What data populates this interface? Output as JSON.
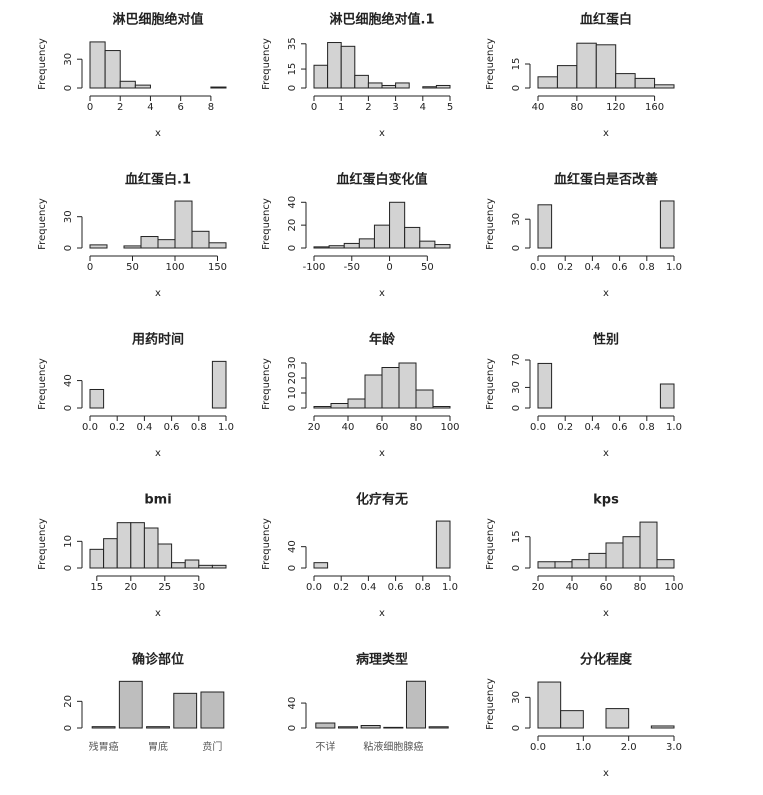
{
  "chart_data": [
    {
      "type": "histogram",
      "title": "淋巴细胞绝对值",
      "xlabel": "x",
      "ylabel": "Frequency",
      "color": "#d3d3d3",
      "bins": [
        0,
        1,
        2,
        3,
        4,
        5,
        6,
        7,
        8,
        9
      ],
      "values": [
        48,
        39,
        7,
        3,
        0,
        0,
        0,
        0,
        1
      ],
      "xlim": [
        0,
        9
      ],
      "xticks": [
        0,
        2,
        4,
        6,
        8
      ],
      "ylim": [
        0,
        50
      ],
      "yticks": [
        0,
        30
      ]
    },
    {
      "type": "histogram",
      "title": "淋巴细胞绝对值.1",
      "xlabel": "x",
      "ylabel": "Frequency",
      "color": "#d3d3d3",
      "bins": [
        0,
        0.5,
        1,
        1.5,
        2,
        2.5,
        3,
        3.5,
        4,
        4.5,
        5
      ],
      "values": [
        18,
        36,
        33,
        10,
        4,
        2,
        4,
        0,
        1,
        2
      ],
      "xlim": [
        0,
        5
      ],
      "xticks": [
        0,
        1,
        2,
        3,
        4,
        5
      ],
      "ylim": [
        0,
        38
      ],
      "yticks": [
        0,
        15,
        35
      ]
    },
    {
      "type": "histogram",
      "title": "血红蛋白",
      "xlabel": "x",
      "ylabel": "Frequency",
      "color": "#d3d3d3",
      "bins": [
        40,
        60,
        80,
        100,
        120,
        140,
        160,
        180
      ],
      "values": [
        7,
        14,
        28,
        27,
        9,
        6,
        2
      ],
      "xlim": [
        40,
        180
      ],
      "xticks": [
        40,
        80,
        120,
        160
      ],
      "ylim": [
        0,
        30
      ],
      "yticks": [
        0,
        15
      ]
    },
    {
      "type": "histogram",
      "title": "血红蛋白.1",
      "xlabel": "x",
      "ylabel": "Frequency",
      "color": "#d3d3d3",
      "bins": [
        0,
        20,
        40,
        60,
        80,
        100,
        120,
        140,
        160
      ],
      "values": [
        3,
        0,
        2,
        11,
        8,
        45,
        16,
        5
      ],
      "xlim": [
        0,
        160
      ],
      "xticks": [
        0,
        50,
        100,
        150
      ],
      "ylim": [
        0,
        46
      ],
      "yticks": [
        0,
        30
      ]
    },
    {
      "type": "histogram",
      "title": "血红蛋白变化值",
      "xlabel": "x",
      "ylabel": "Frequency",
      "color": "#d3d3d3",
      "bins": [
        -100,
        -80,
        -60,
        -40,
        -20,
        0,
        20,
        40,
        60,
        80
      ],
      "values": [
        1,
        2,
        4,
        8,
        20,
        40,
        18,
        6,
        3
      ],
      "xlim": [
        -100,
        80
      ],
      "xticks": [
        -100,
        -50,
        0,
        50
      ],
      "ylim": [
        0,
        42
      ],
      "yticks": [
        0,
        20,
        40
      ]
    },
    {
      "type": "histogram",
      "title": "血红蛋白是否改善",
      "xlabel": "x",
      "ylabel": "Frequency",
      "color": "#d3d3d3",
      "bins": [
        0,
        0.1,
        0.2,
        0.3,
        0.4,
        0.5,
        0.6,
        0.7,
        0.8,
        0.9,
        1
      ],
      "values": [
        45,
        0,
        0,
        0,
        0,
        0,
        0,
        0,
        0,
        49
      ],
      "xlim": [
        0,
        1
      ],
      "xticks": [
        {
          "value": 0,
          "label": "0.0"
        },
        0.2,
        0.4,
        0.6,
        0.8,
        {
          "value": 1,
          "label": "1.0"
        }
      ],
      "ylim": [
        0,
        50
      ],
      "yticks": [
        0,
        30
      ]
    },
    {
      "type": "histogram",
      "title": "用药时间",
      "xlabel": "x",
      "ylabel": "Frequency",
      "color": "#d3d3d3",
      "bins": [
        0,
        0.1,
        0.2,
        0.3,
        0.4,
        0.5,
        0.6,
        0.7,
        0.8,
        0.9,
        1
      ],
      "values": [
        27,
        0,
        0,
        0,
        0,
        0,
        0,
        0,
        0,
        68
      ],
      "xlim": [
        0,
        1
      ],
      "xticks": [
        {
          "value": 0,
          "label": "0.0"
        },
        0.2,
        0.4,
        0.6,
        0.8,
        {
          "value": 1,
          "label": "1.0"
        }
      ],
      "ylim": [
        0,
        70
      ],
      "yticks": [
        0,
        40
      ]
    },
    {
      "type": "histogram",
      "title": "年龄",
      "xlabel": "x",
      "ylabel": "Frequency",
      "color": "#d3d3d3",
      "bins": [
        20,
        30,
        40,
        50,
        60,
        70,
        80,
        90,
        100
      ],
      "values": [
        1,
        3,
        6,
        22,
        27,
        30,
        12,
        1
      ],
      "xlim": [
        20,
        100
      ],
      "xticks": [
        20,
        40,
        60,
        80,
        100
      ],
      "ylim": [
        0,
        32
      ],
      "yticks": [
        0,
        10,
        20,
        30
      ]
    },
    {
      "type": "histogram",
      "title": "性别",
      "xlabel": "x",
      "ylabel": "Frequency",
      "color": "#d3d3d3",
      "bins": [
        0,
        0.1,
        0.2,
        0.3,
        0.4,
        0.5,
        0.6,
        0.7,
        0.8,
        0.9,
        1
      ],
      "values": [
        65,
        0,
        0,
        0,
        0,
        0,
        0,
        0,
        0,
        35
      ],
      "xlim": [
        0,
        1
      ],
      "xticks": [
        {
          "value": 0,
          "label": "0.0"
        },
        0.2,
        0.4,
        0.6,
        0.8,
        {
          "value": 1,
          "label": "1.0"
        }
      ],
      "ylim": [
        0,
        70
      ],
      "yticks": [
        0,
        30,
        70
      ]
    },
    {
      "type": "histogram",
      "title": "bmi",
      "xlabel": "x",
      "ylabel": "Frequency",
      "color": "#d3d3d3",
      "bins": [
        14,
        16,
        18,
        20,
        22,
        24,
        26,
        28,
        30,
        32,
        34
      ],
      "values": [
        7,
        11,
        17,
        17,
        15,
        9,
        2,
        3,
        1,
        1
      ],
      "xlim": [
        14,
        34
      ],
      "xticks": [
        15,
        20,
        25,
        30
      ],
      "ylim": [
        0,
        18
      ],
      "yticks": [
        0,
        10
      ]
    },
    {
      "type": "histogram",
      "title": "化疗有无",
      "xlabel": "x",
      "ylabel": "Frequency",
      "color": "#d3d3d3",
      "bins": [
        0,
        0.1,
        0.2,
        0.3,
        0.4,
        0.5,
        0.6,
        0.7,
        0.8,
        0.9,
        1
      ],
      "values": [
        10,
        0,
        0,
        0,
        0,
        0,
        0,
        0,
        0,
        88
      ],
      "xlim": [
        0,
        1
      ],
      "xticks": [
        {
          "value": 0,
          "label": "0.0"
        },
        0.2,
        0.4,
        0.6,
        0.8,
        {
          "value": 1,
          "label": "1.0"
        }
      ],
      "ylim": [
        0,
        90
      ],
      "yticks": [
        0,
        40
      ]
    },
    {
      "type": "histogram",
      "title": "kps",
      "xlabel": "x",
      "ylabel": "Frequency",
      "color": "#d3d3d3",
      "bins": [
        20,
        30,
        40,
        50,
        60,
        70,
        80,
        90,
        100
      ],
      "values": [
        3,
        3,
        4,
        7,
        12,
        15,
        22,
        4
      ],
      "xlim": [
        20,
        100
      ],
      "xticks": [
        20,
        40,
        60,
        80,
        100
      ],
      "ylim": [
        0,
        23
      ],
      "yticks": [
        0,
        15
      ]
    },
    {
      "type": "bar",
      "title": "确诊部位",
      "color": "#bebebe",
      "categories": [
        "残胃癌",
        null,
        "胃底",
        null,
        "贲门"
      ],
      "values": [
        1,
        35,
        1,
        26,
        27
      ],
      "ylim": [
        0,
        36
      ],
      "yticks": [
        0,
        20
      ]
    },
    {
      "type": "bar",
      "title": "病理类型",
      "color": "#bebebe",
      "categories": [
        "不详",
        null,
        null,
        "粘液细胞腺癌",
        null,
        null
      ],
      "values": [
        8,
        2,
        4,
        1,
        75,
        2
      ],
      "ylim": [
        0,
        77
      ],
      "yticks": [
        0,
        40
      ]
    },
    {
      "type": "histogram",
      "title": "分化程度",
      "xlabel": "x",
      "ylabel": "Frequency",
      "color": "#d3d3d3",
      "bins": [
        0,
        0.5,
        1,
        1.5,
        2,
        2.5,
        3
      ],
      "values": [
        45,
        17,
        0,
        19,
        0,
        2
      ],
      "xlim": [
        0,
        3
      ],
      "xticks": [
        {
          "value": 0,
          "label": "0.0"
        },
        {
          "value": 1,
          "label": "1.0"
        },
        {
          "value": 2,
          "label": "2.0"
        },
        {
          "value": 3,
          "label": "3.0"
        }
      ],
      "ylim": [
        0,
        47
      ],
      "yticks": [
        0,
        30
      ]
    }
  ]
}
